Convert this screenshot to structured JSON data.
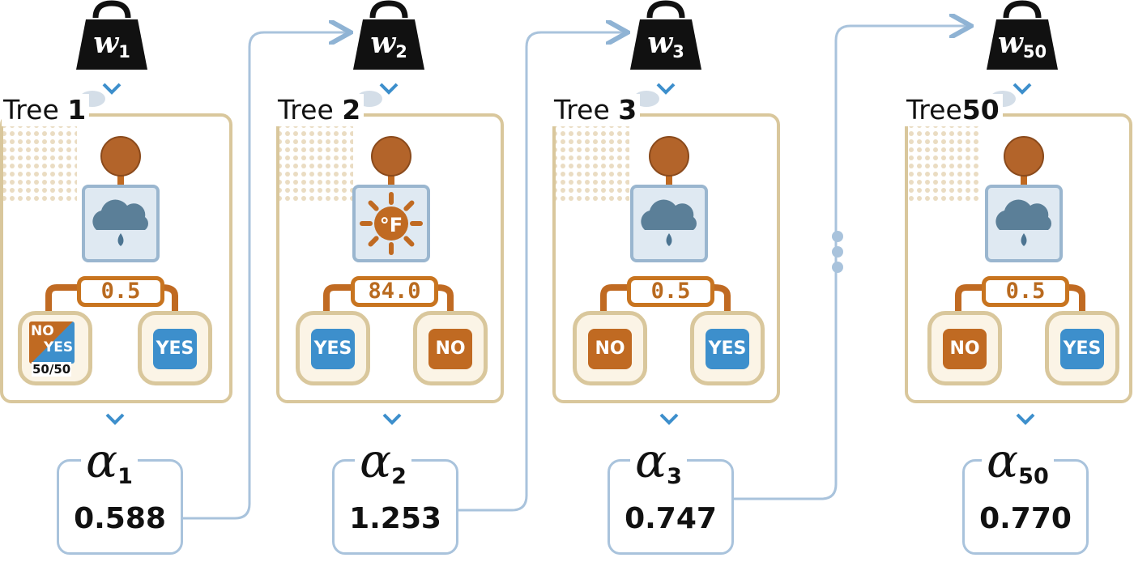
{
  "trees": [
    {
      "weight": {
        "letter": "w",
        "index": "1"
      },
      "tree": {
        "prefix": "Tree",
        "number": "1"
      },
      "feature_icon": "rain-cloud-icon",
      "threshold": "0.5",
      "leaves": [
        {
          "kind": "split",
          "top": "NO",
          "bottom": "YES",
          "ratio": "50/50"
        },
        {
          "kind": "yes",
          "label": "YES"
        }
      ],
      "alpha": {
        "symbol": "α",
        "index": "1",
        "value": "0.588"
      }
    },
    {
      "weight": {
        "letter": "w",
        "index": "2"
      },
      "tree": {
        "prefix": "Tree",
        "number": "2"
      },
      "feature_icon": "temperature-sun-icon",
      "threshold": "84.0",
      "leaves": [
        {
          "kind": "yes",
          "label": "YES"
        },
        {
          "kind": "no",
          "label": "NO"
        }
      ],
      "alpha": {
        "symbol": "α",
        "index": "2",
        "value": "1.253"
      }
    },
    {
      "weight": {
        "letter": "w",
        "index": "3"
      },
      "tree": {
        "prefix": "Tree",
        "number": "3"
      },
      "feature_icon": "rain-cloud-icon",
      "threshold": "0.5",
      "leaves": [
        {
          "kind": "no",
          "label": "NO"
        },
        {
          "kind": "yes",
          "label": "YES"
        }
      ],
      "alpha": {
        "symbol": "α",
        "index": "3",
        "value": "0.747"
      }
    },
    {
      "weight": {
        "letter": "w",
        "index": "50"
      },
      "tree": {
        "prefix": "Tree",
        "number": "50"
      },
      "feature_icon": "rain-cloud-icon",
      "threshold": "0.5",
      "leaves": [
        {
          "kind": "no",
          "label": "NO"
        },
        {
          "kind": "yes",
          "label": "YES"
        }
      ],
      "alpha": {
        "symbol": "α",
        "index": "50",
        "value": "0.770"
      }
    }
  ],
  "colors": {
    "orange": "#c06a22",
    "blue": "#3d8fcc",
    "connector": "#a9c3dc",
    "tree_border": "#d9c79c",
    "icon_panel": "#dfe9f2"
  },
  "ellipsis_icon": "vertical-ellipsis-icon"
}
